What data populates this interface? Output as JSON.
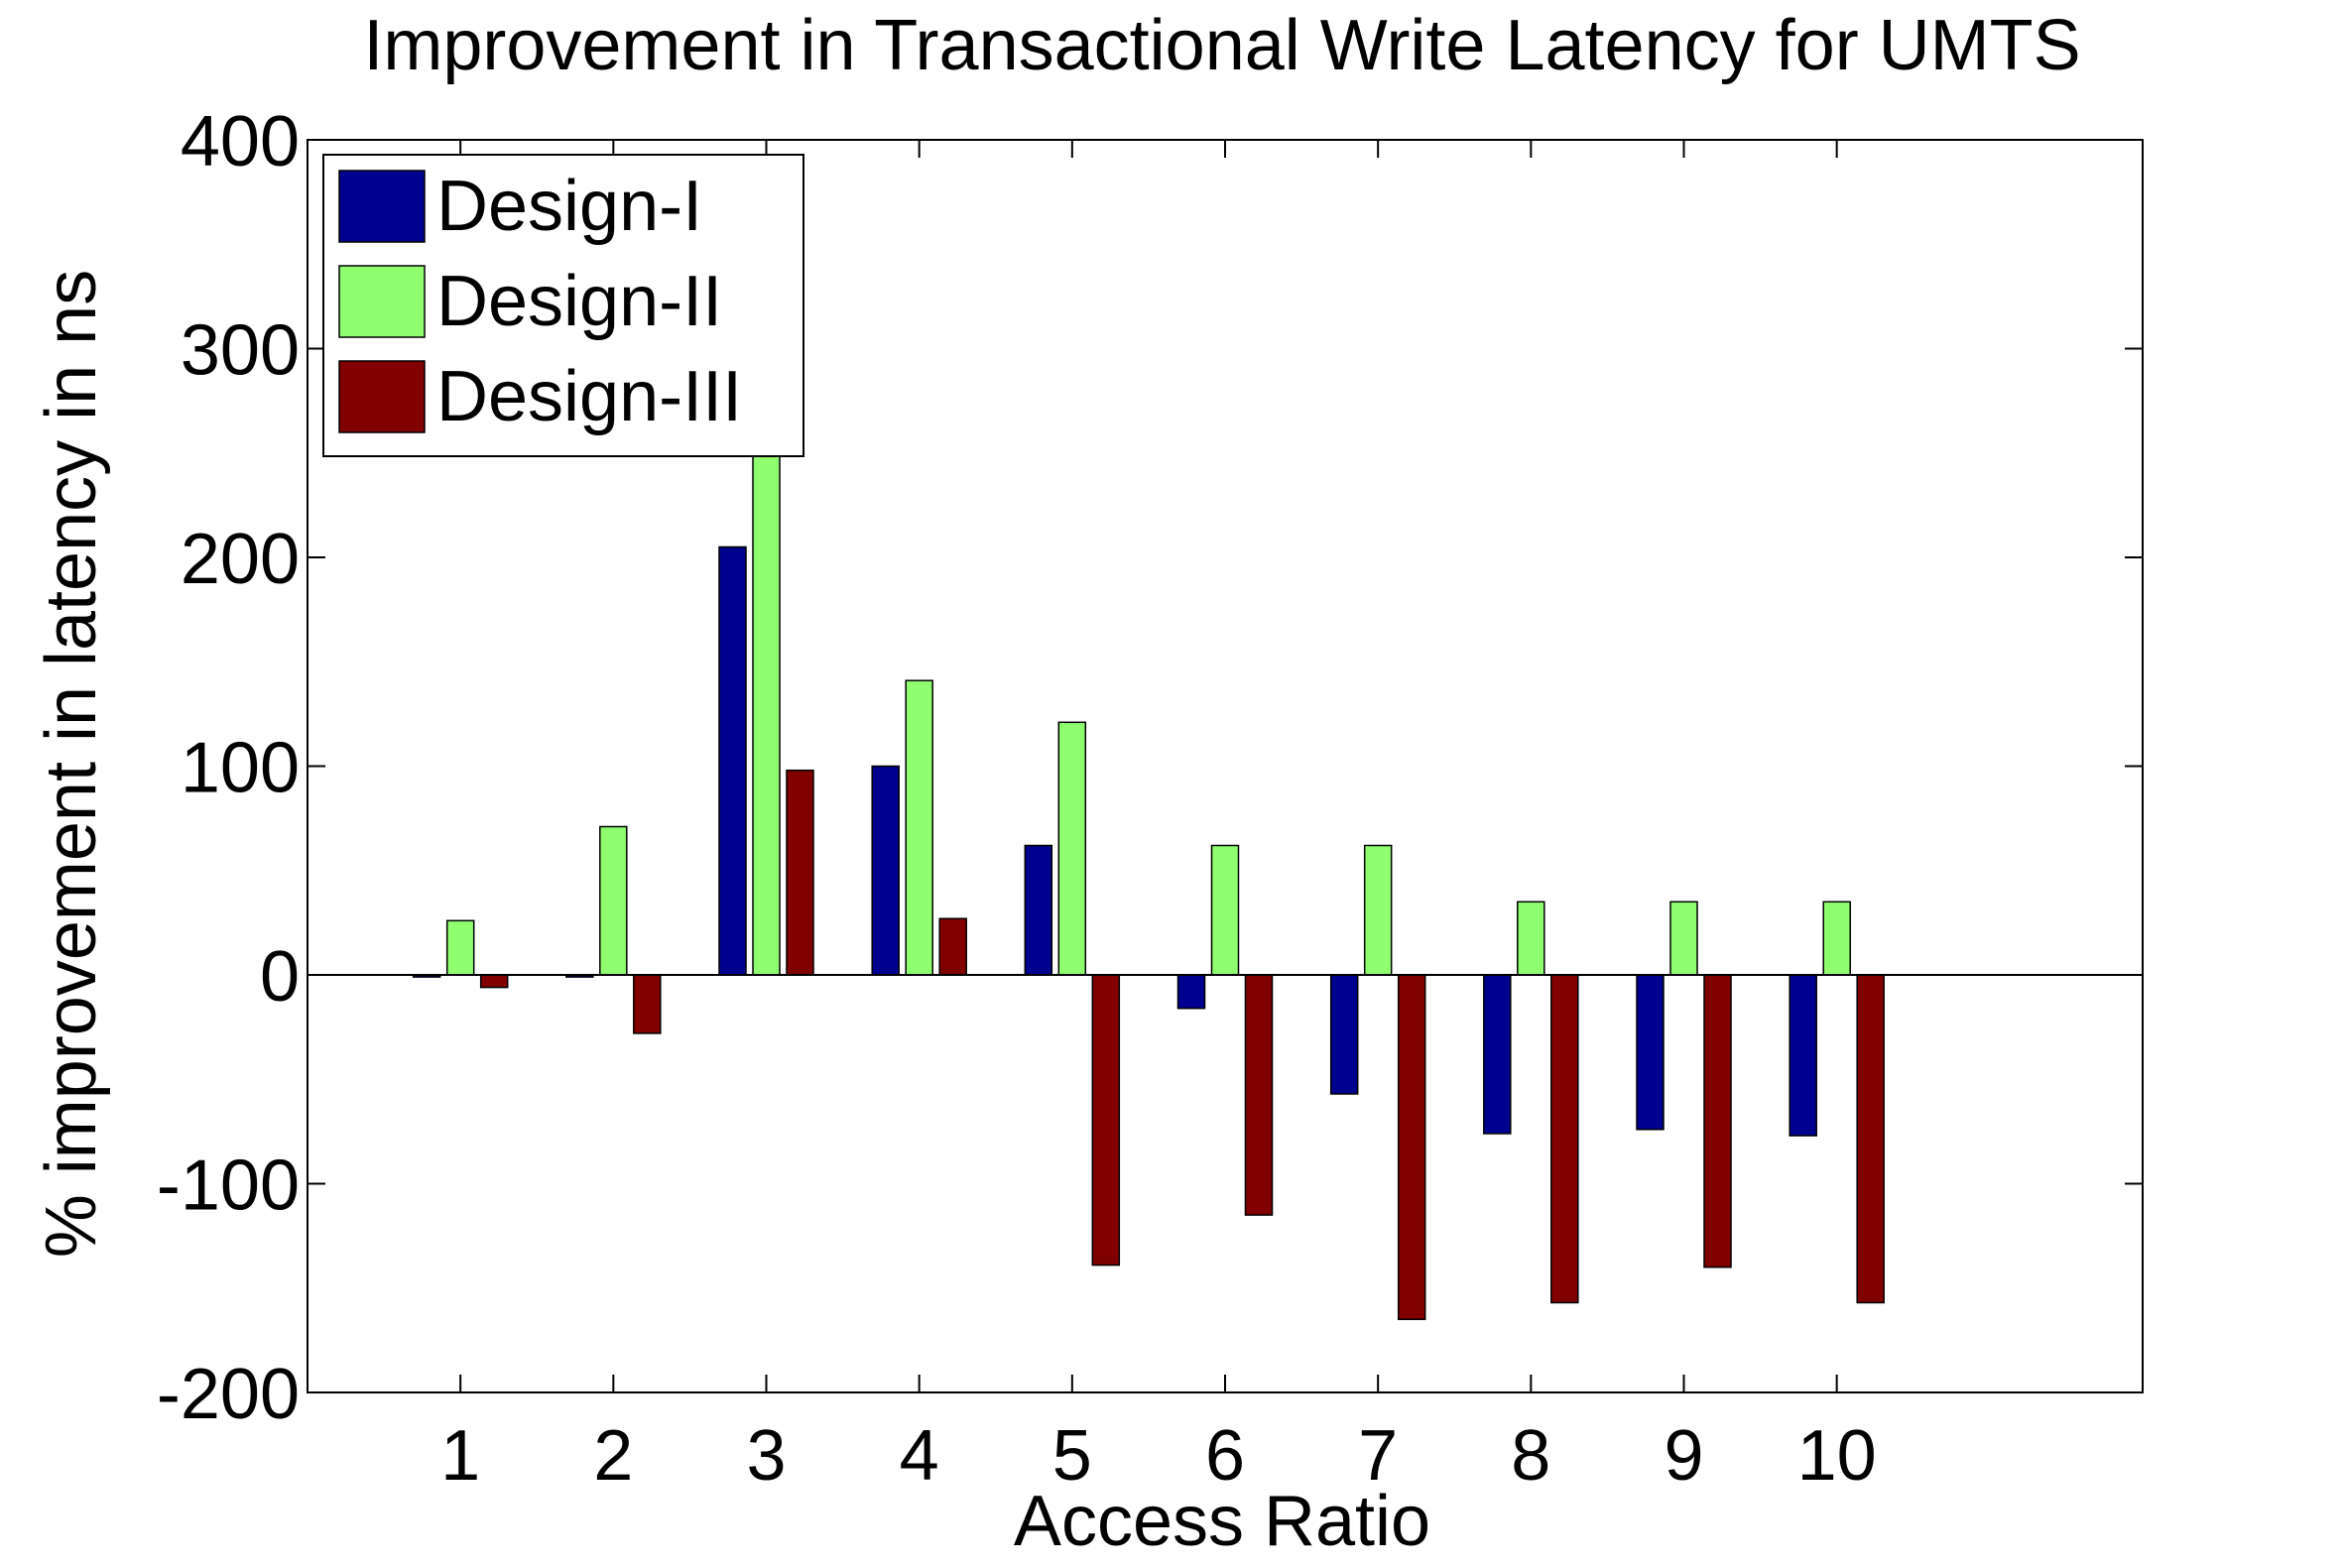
{
  "chart_data": {
    "type": "bar",
    "title": "Improvement in Transactional Write Latency for UMTS",
    "xlabel": "Access Ratio",
    "ylabel": "% improvement in latency in ns",
    "categories": [
      "1",
      "2",
      "3",
      "4",
      "5",
      "6",
      "7",
      "8",
      "9",
      "10"
    ],
    "xlim": [
      0,
      12
    ],
    "ylim": [
      -200,
      400
    ],
    "yticks": [
      -200,
      -100,
      0,
      100,
      200,
      300,
      400
    ],
    "ytick_labels": [
      "-200",
      "-100",
      "0",
      "100",
      "200",
      "300",
      "400"
    ],
    "grid": false,
    "legend_position": "top-left",
    "series": [
      {
        "name": "Design-I",
        "color": "#00008f",
        "values": [
          -1,
          -1,
          205,
          100,
          62,
          -16,
          -57,
          -76,
          -74,
          -77
        ]
      },
      {
        "name": "Design-II",
        "color": "#8fff6f",
        "values": [
          26,
          71,
          255,
          141,
          121,
          62,
          62,
          35,
          35,
          35
        ]
      },
      {
        "name": "Design-III",
        "color": "#800000",
        "values": [
          -6,
          -28,
          98,
          27,
          -139,
          -115,
          -165,
          -157,
          -140,
          -157
        ]
      }
    ]
  }
}
